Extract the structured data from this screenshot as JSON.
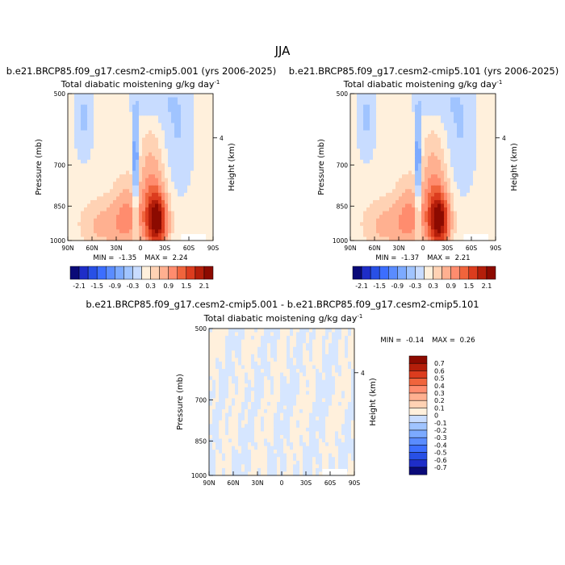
{
  "figure_title": "JJA",
  "chart_data": [
    {
      "type": "heatmap",
      "id": "case1",
      "case_label": "b.e21.BRCP85.f09_g17.cesm2-cmip5.001 (yrs 2006-2025)",
      "title": "Total diabatic moistening",
      "units_prefix": "g/kg day",
      "units_exp": "-1",
      "xlabel": "",
      "ylabel": "Pressure (mb)",
      "ylabel_right": "Height (km)",
      "x_ticks": [
        "90N",
        "60N",
        "30N",
        "0",
        "30S",
        "60S",
        "90S"
      ],
      "x_range": [
        90,
        -90
      ],
      "y_ticks": [
        "500",
        "700",
        "850",
        "1000"
      ],
      "y_tick_values": [
        500,
        700,
        850,
        1000
      ],
      "y_range": [
        500,
        1000
      ],
      "height_ticks": [
        "4"
      ],
      "height_tick_pressure": 616,
      "min_label": "MIN = ",
      "min_value": "-1.35",
      "max_label": "MAX = ",
      "max_value": "2.24",
      "contour_levels": [
        -2.1,
        -1.8,
        -1.5,
        -1.2,
        -0.9,
        -0.6,
        -0.3,
        0,
        0.3,
        0.6,
        0.9,
        1.2,
        1.5,
        1.8,
        2.1
      ],
      "field_model": {
        "background": 0.08,
        "features": [
          {
            "lat": -20,
            "p": 935,
            "amp": 2.1,
            "wlat": 14,
            "wp": 100
          },
          {
            "lat": -14,
            "p": 790,
            "amp": 0.7,
            "wlat": 16,
            "wp": 160
          },
          {
            "lat": 15,
            "p": 920,
            "amp": 0.8,
            "wlat": 20,
            "wp": 130
          },
          {
            "lat": 48,
            "p": 945,
            "amp": 0.6,
            "wlat": 28,
            "wp": 90
          },
          {
            "lat": 6,
            "p": 760,
            "amp": -1.3,
            "wlat": 3.5,
            "wp": 200
          },
          {
            "lat": 70,
            "p": 580,
            "amp": -0.45,
            "wlat": 10,
            "wp": 120
          },
          {
            "lat": -45,
            "p": 620,
            "amp": -0.4,
            "wlat": 18,
            "wp": 200
          },
          {
            "lat": -15,
            "p": 520,
            "amp": -0.3,
            "wlat": 25,
            "wp": 70
          }
        ]
      }
    },
    {
      "type": "heatmap",
      "id": "case2",
      "case_label": "b.e21.BRCP85.f09_g17.cesm2-cmip5.101 (yrs 2006-2025)",
      "title": "Total diabatic moistening",
      "units_prefix": "g/kg day",
      "units_exp": "-1",
      "xlabel": "",
      "ylabel": "Pressure (mb)",
      "ylabel_right": "Height (km)",
      "x_ticks": [
        "90N",
        "60N",
        "30N",
        "0",
        "30S",
        "60S",
        "90S"
      ],
      "x_range": [
        90,
        -90
      ],
      "y_ticks": [
        "500",
        "700",
        "850",
        "1000"
      ],
      "y_tick_values": [
        500,
        700,
        850,
        1000
      ],
      "y_range": [
        500,
        1000
      ],
      "height_ticks": [
        "4"
      ],
      "height_tick_pressure": 616,
      "min_label": "MIN = ",
      "min_value": "-1.37",
      "max_label": "MAX = ",
      "max_value": "2.21",
      "contour_levels": [
        -2.1,
        -1.8,
        -1.5,
        -1.2,
        -0.9,
        -0.6,
        -0.3,
        0,
        0.3,
        0.6,
        0.9,
        1.2,
        1.5,
        1.8,
        2.1
      ],
      "field_model": {
        "background": 0.08,
        "features": [
          {
            "lat": -20,
            "p": 935,
            "amp": 2.08,
            "wlat": 14,
            "wp": 100
          },
          {
            "lat": -14,
            "p": 790,
            "amp": 0.7,
            "wlat": 16,
            "wp": 160
          },
          {
            "lat": 15,
            "p": 920,
            "amp": 0.8,
            "wlat": 20,
            "wp": 130
          },
          {
            "lat": 48,
            "p": 945,
            "amp": 0.6,
            "wlat": 28,
            "wp": 90
          },
          {
            "lat": 6,
            "p": 760,
            "amp": -1.32,
            "wlat": 3.5,
            "wp": 200
          },
          {
            "lat": 70,
            "p": 580,
            "amp": -0.45,
            "wlat": 10,
            "wp": 120
          },
          {
            "lat": -45,
            "p": 620,
            "amp": -0.4,
            "wlat": 18,
            "wp": 200
          },
          {
            "lat": -15,
            "p": 520,
            "amp": -0.3,
            "wlat": 25,
            "wp": 70
          }
        ]
      }
    },
    {
      "type": "heatmap",
      "id": "diff",
      "case_label": "b.e21.BRCP85.f09_g17.cesm2-cmip5.001 - b.e21.BRCP85.f09_g17.cesm2-cmip5.101",
      "title": "Total diabatic moistening",
      "units_prefix": "g/kg day",
      "units_exp": "-1",
      "xlabel": "",
      "ylabel": "Pressure (mb)",
      "ylabel_right": "Height (km)",
      "x_ticks": [
        "90N",
        "60N",
        "30N",
        "0",
        "30S",
        "60S",
        "90S"
      ],
      "x_range": [
        90,
        -90
      ],
      "y_ticks": [
        "500",
        "700",
        "850",
        "1000"
      ],
      "y_tick_values": [
        500,
        700,
        850,
        1000
      ],
      "y_range": [
        500,
        1000
      ],
      "height_ticks": [
        "4"
      ],
      "height_tick_pressure": 616,
      "min_label": "MIN = ",
      "min_value": "-0.14",
      "max_label": "MAX = ",
      "max_value": "0.26",
      "contour_levels": [
        -0.7,
        -0.6,
        -0.5,
        -0.4,
        -0.3,
        -0.2,
        -0.1,
        0,
        0.1,
        0.2,
        0.3,
        0.4,
        0.5,
        0.6,
        0.7
      ]
    }
  ],
  "colorbars": {
    "top": {
      "labels": [
        "-2.1",
        "-1.5",
        "-0.9",
        "-0.3",
        "0.3",
        "0.9",
        "1.5",
        "2.1"
      ],
      "colors": [
        "#0a0a78",
        "#1e2dc8",
        "#2850e6",
        "#3c6eff",
        "#5a8cff",
        "#7caaff",
        "#a0c4ff",
        "#c8dcff",
        "#fff0dc",
        "#ffd2b4",
        "#ffb090",
        "#ff8c6e",
        "#f0643c",
        "#dc3c1e",
        "#b41e0a",
        "#8c0a00"
      ]
    },
    "diff": {
      "labels": [
        "0.7",
        "0.6",
        "0.5",
        "0.4",
        "0.3",
        "0.2",
        "0.1",
        "0",
        "-0.1",
        "-0.2",
        "-0.3",
        "-0.4",
        "-0.5",
        "-0.6",
        "-0.7"
      ],
      "colors": [
        "#8c0a00",
        "#b41e0a",
        "#dc3c1e",
        "#f0643c",
        "#ff8c6e",
        "#ffb090",
        "#ffd2b4",
        "#fff0dc",
        "#c8dcff",
        "#a0c4ff",
        "#7caaff",
        "#5a8cff",
        "#3c6eff",
        "#2850e6",
        "#1e2dc8",
        "#0a0a78"
      ]
    }
  }
}
